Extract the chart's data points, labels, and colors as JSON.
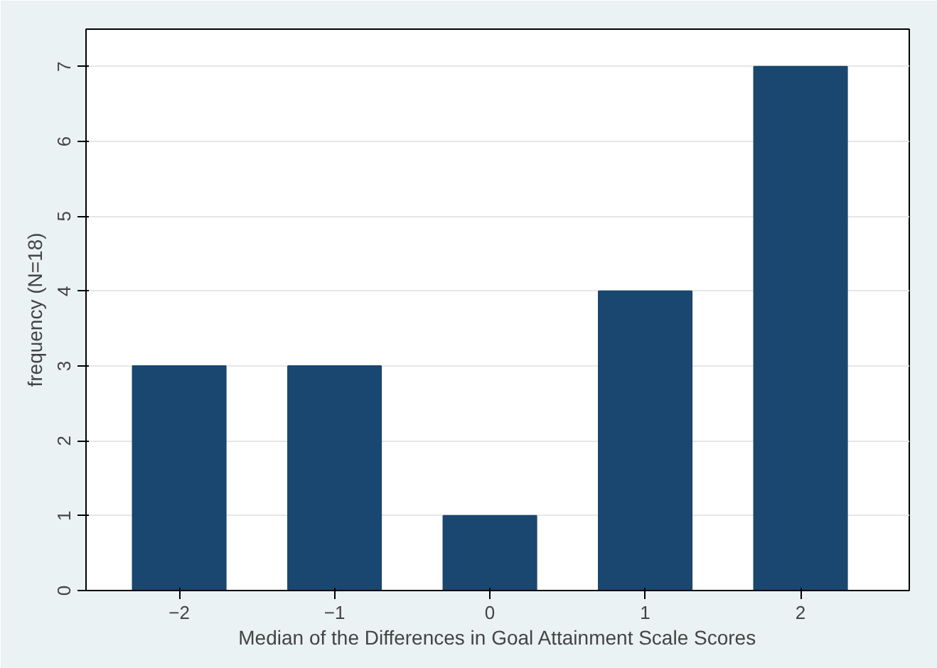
{
  "chart_data": {
    "type": "bar",
    "x": [
      -2,
      -1,
      0,
      1,
      2
    ],
    "values": [
      3,
      3,
      1,
      4,
      7
    ],
    "color": "#1a476f",
    "xlabel": "Median of the Differences in Goal Attainment Scale Scores",
    "ylabel": "frequency (N=18)",
    "xlim": [
      -2.6,
      2.7
    ],
    "xticks": [
      {
        "value": -2,
        "label": "−2"
      },
      {
        "value": -1,
        "label": "−1"
      },
      0,
      1,
      2
    ],
    "ylim": [
      0,
      7.5
    ],
    "yticks": [
      0,
      1,
      2,
      3,
      4,
      5,
      6,
      7
    ],
    "grid": "y"
  }
}
